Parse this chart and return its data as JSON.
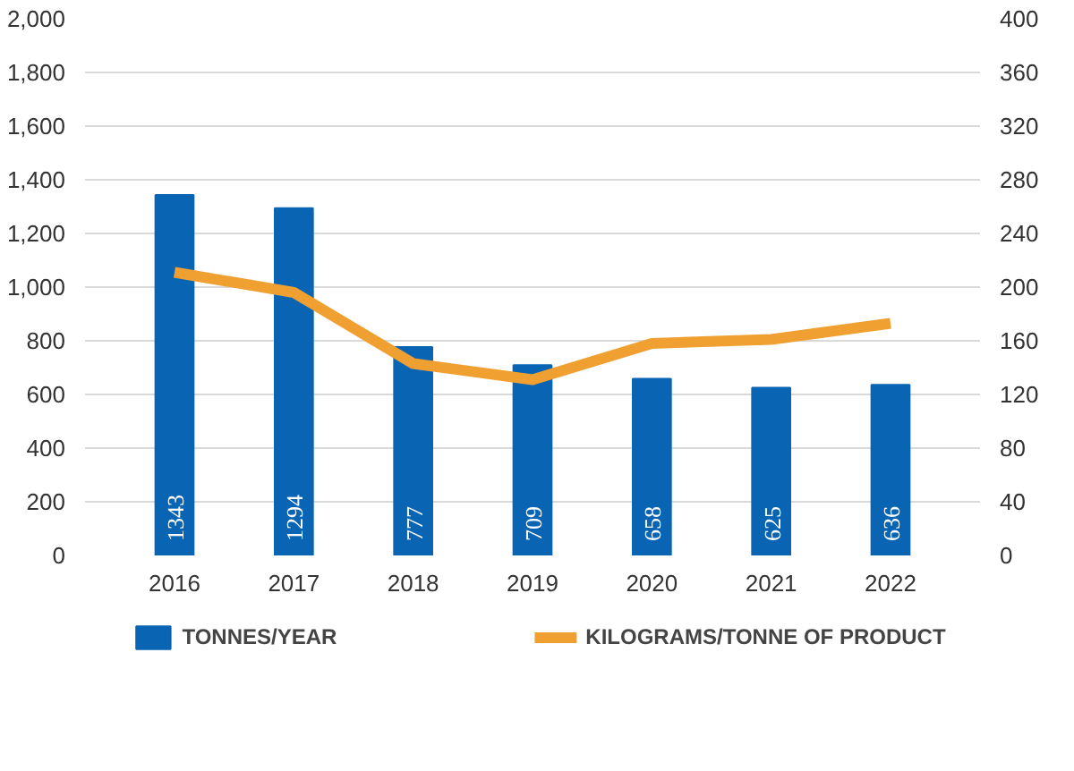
{
  "chart_data": {
    "type": "bar",
    "categories": [
      "2016",
      "2017",
      "2018",
      "2019",
      "2020",
      "2021",
      "2022"
    ],
    "series": [
      {
        "name": "TONNES/YEAR",
        "color": "#0a64b4",
        "values": [
          1343,
          1294,
          777,
          709,
          658,
          625,
          636
        ],
        "value_labels": [
          "1343",
          "1294",
          "777",
          "709",
          "658",
          "625",
          "636"
        ]
      },
      {
        "name": "KILOGRAMS/TONNE OF PRODUCT",
        "type": "line",
        "axis": "y2",
        "color": "#f0a030",
        "values": [
          211,
          196,
          143,
          131,
          158,
          161,
          173
        ]
      }
    ],
    "ylim": [
      0,
      2000
    ],
    "yticks": [
      0,
      200,
      400,
      600,
      800,
      {
        "value": 1000,
        "label": "1,000"
      },
      {
        "value": 1200,
        "label": "1,200"
      },
      {
        "value": 1400,
        "label": "1,400"
      },
      {
        "value": 1600,
        "label": "1,600"
      },
      {
        "value": 1800,
        "label": "1,800"
      },
      {
        "value": 2000,
        "label": "2,000"
      }
    ],
    "y2lim": [
      0,
      400
    ],
    "y2ticks": [
      0,
      40,
      80,
      120,
      160,
      200,
      240,
      280,
      320,
      360,
      400
    ],
    "grid": "y",
    "legend": "bottom"
  }
}
